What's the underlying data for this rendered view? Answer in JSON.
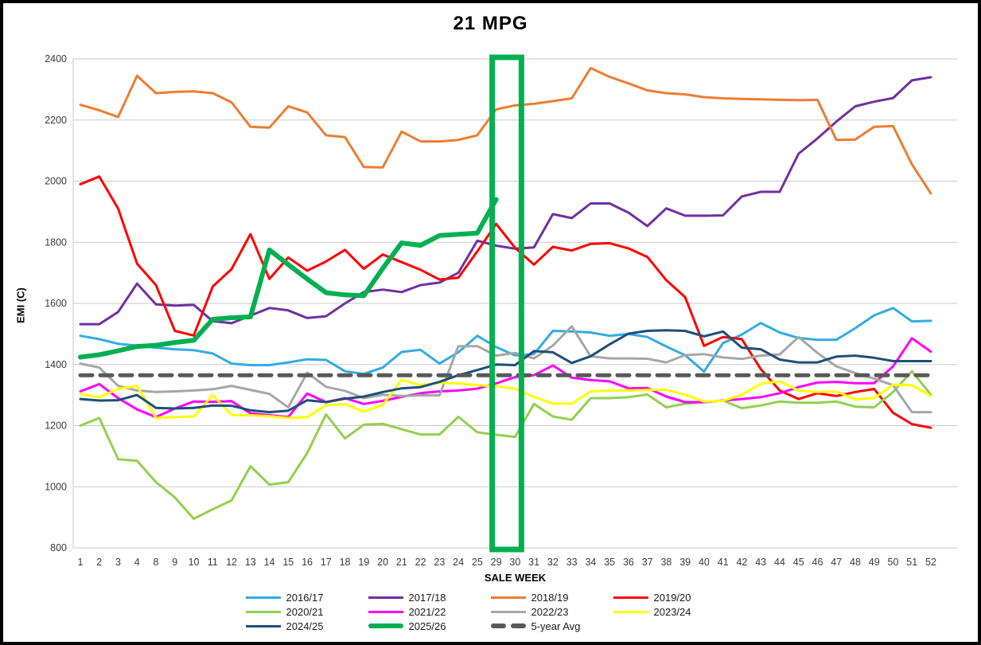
{
  "window": {
    "title": "21 MPG"
  },
  "chart_data": {
    "type": "line",
    "title": "21 MPG",
    "xlabel": "SALE WEEK",
    "ylabel": "EMI (C)",
    "ylim": [
      800,
      2400
    ],
    "y_ticks": [
      800,
      1000,
      1200,
      1400,
      1600,
      1800,
      2000,
      2200,
      2400
    ],
    "grid": true,
    "legend_position": "bottom",
    "gridline_color": "#c9c9c9",
    "axis_text_color": "#3a3a3a",
    "highlight_box": {
      "from_week": 29,
      "to_week": 30,
      "color": "#00B050"
    },
    "categories": [
      1,
      2,
      3,
      4,
      8,
      9,
      10,
      11,
      12,
      13,
      14,
      15,
      16,
      17,
      18,
      19,
      20,
      21,
      22,
      23,
      24,
      25,
      29,
      30,
      31,
      32,
      33,
      34,
      35,
      36,
      37,
      38,
      39,
      40,
      41,
      42,
      43,
      44,
      45,
      46,
      47,
      48,
      49,
      50,
      51,
      52
    ],
    "series": [
      {
        "name": "2016/17",
        "color": "#33ABE3",
        "width": 3,
        "values": [
          1494,
          1483,
          1468,
          1462,
          1455,
          1450,
          1447,
          1436,
          1403,
          1398,
          1398,
          1407,
          1417,
          1415,
          1378,
          1369,
          1390,
          1441,
          1448,
          1403,
          1440,
          1494,
          1457,
          1430,
          1434,
          1510,
          1508,
          1505,
          1494,
          1500,
          1490,
          1459,
          1430,
          1377,
          1470,
          1498,
          1536,
          1505,
          1487,
          1481,
          1481,
          1519,
          1561,
          1585,
          1541,
          1543
        ]
      },
      {
        "name": "2017/18",
        "color": "#7030A0",
        "width": 3,
        "values": [
          1532,
          1532,
          1572,
          1665,
          1597,
          1593,
          1595,
          1542,
          1535,
          1560,
          1585,
          1577,
          1552,
          1558,
          1600,
          1637,
          1645,
          1637,
          1660,
          1668,
          1700,
          1805,
          1789,
          1779,
          1783,
          1892,
          1879,
          1927,
          1927,
          1897,
          1853,
          1911,
          1887,
          1887,
          1888,
          1950,
          1965,
          1965,
          2090,
          2140,
          2195,
          2245,
          2260,
          2272,
          2330,
          2340
        ]
      },
      {
        "name": "2018/19",
        "color": "#ED7D31",
        "width": 3,
        "values": [
          2250,
          2232,
          2210,
          2345,
          2288,
          2292,
          2294,
          2288,
          2258,
          2178,
          2175,
          2245,
          2225,
          2150,
          2144,
          2046,
          2045,
          2162,
          2130,
          2130,
          2135,
          2150,
          2235,
          2248,
          2253,
          2262,
          2271,
          2370,
          2341,
          2320,
          2297,
          2288,
          2284,
          2275,
          2271,
          2269,
          2268,
          2266,
          2265,
          2266,
          2135,
          2136,
          2178,
          2180,
          2055,
          1960
        ]
      },
      {
        "name": "2019/20",
        "color": "#FF0000",
        "width": 3,
        "values": [
          1990,
          2015,
          1910,
          1730,
          1660,
          1510,
          1495,
          1655,
          1712,
          1827,
          1680,
          1750,
          1707,
          1737,
          1775,
          1713,
          1760,
          1735,
          1710,
          1678,
          1684,
          1770,
          1860,
          1782,
          1727,
          1785,
          1773,
          1795,
          1797,
          1780,
          1752,
          1676,
          1620,
          1461,
          1490,
          1483,
          1385,
          1315,
          1287,
          1306,
          1297,
          1310,
          1320,
          1242,
          1205,
          1193
        ]
      },
      {
        "name": "2020/21",
        "color": "#92D050",
        "width": 3,
        "values": [
          1200,
          1225,
          1090,
          1085,
          1015,
          965,
          895,
          926,
          955,
          1067,
          1007,
          1015,
          1110,
          1237,
          1158,
          1203,
          1206,
          1188,
          1171,
          1171,
          1229,
          1178,
          1170,
          1163,
          1271,
          1230,
          1219,
          1290,
          1290,
          1293,
          1302,
          1260,
          1272,
          1276,
          1282,
          1257,
          1266,
          1279,
          1275,
          1275,
          1279,
          1262,
          1260,
          1310,
          1378,
          1301
        ]
      },
      {
        "name": "2021/22",
        "color": "#FF00FF",
        "width": 3,
        "values": [
          1312,
          1336,
          1290,
          1253,
          1228,
          1256,
          1279,
          1278,
          1280,
          1240,
          1234,
          1228,
          1305,
          1277,
          1290,
          1271,
          1281,
          1294,
          1306,
          1312,
          1315,
          1321,
          1338,
          1359,
          1365,
          1397,
          1357,
          1349,
          1345,
          1322,
          1323,
          1295,
          1277,
          1277,
          1282,
          1287,
          1293,
          1306,
          1326,
          1341,
          1343,
          1339,
          1339,
          1394,
          1486,
          1442
        ]
      },
      {
        "name": "2022/23",
        "color": "#A6A6A6",
        "width": 3,
        "values": [
          1403,
          1390,
          1330,
          1315,
          1310,
          1312,
          1315,
          1319,
          1330,
          1317,
          1304,
          1260,
          1373,
          1327,
          1314,
          1290,
          1301,
          1297,
          1299,
          1299,
          1460,
          1460,
          1429,
          1438,
          1420,
          1462,
          1525,
          1427,
          1420,
          1420,
          1419,
          1407,
          1431,
          1434,
          1423,
          1418,
          1429,
          1433,
          1490,
          1438,
          1394,
          1372,
          1354,
          1332,
          1244,
          1244
        ]
      },
      {
        "name": "2023/24",
        "color": "#FFFF00",
        "width": 3,
        "values": [
          1303,
          1293,
          1320,
          1330,
          1225,
          1228,
          1230,
          1300,
          1235,
          1234,
          1231,
          1225,
          1228,
          1267,
          1270,
          1246,
          1268,
          1350,
          1332,
          1340,
          1338,
          1332,
          1329,
          1321,
          1294,
          1272,
          1272,
          1312,
          1315,
          1315,
          1317,
          1317,
          1301,
          1279,
          1281,
          1301,
          1337,
          1345,
          1315,
          1310,
          1312,
          1286,
          1290,
          1334,
          1332,
          1297
        ]
      },
      {
        "name": "2024/25",
        "color": "#1F4E79",
        "width": 3,
        "values": [
          1287,
          1282,
          1283,
          1300,
          1258,
          1256,
          1258,
          1266,
          1265,
          1250,
          1244,
          1249,
          1283,
          1277,
          1288,
          1295,
          1310,
          1322,
          1326,
          1343,
          1365,
          1382,
          1400,
          1398,
          1444,
          1440,
          1405,
          1427,
          1466,
          1501,
          1510,
          1512,
          1510,
          1492,
          1508,
          1455,
          1450,
          1416,
          1407,
          1407,
          1426,
          1429,
          1422,
          1411,
          1411,
          1411
        ]
      },
      {
        "name": "2025/26",
        "color": "#00B050",
        "width": 6,
        "values": [
          1424,
          1432,
          1445,
          1459,
          1463,
          1472,
          1479,
          1548,
          1553,
          1556,
          1775,
          1727,
          1680,
          1635,
          1628,
          1625,
          1715,
          1798,
          1790,
          1822,
          1826,
          1830,
          1940,
          null,
          null,
          null,
          null,
          null,
          null,
          null,
          null,
          null,
          null,
          null,
          null,
          null,
          null,
          null,
          null,
          null,
          null,
          null,
          null,
          null,
          null,
          null
        ]
      },
      {
        "name": "5-year Avg",
        "color": "#595959",
        "width": 5,
        "dash": [
          15,
          10
        ],
        "values": [
          1365,
          1365,
          1365,
          1365,
          1365,
          1365,
          1365,
          1365,
          1365,
          1365,
          1365,
          1365,
          1365,
          1365,
          1365,
          1365,
          1365,
          1365,
          1365,
          1365,
          1365,
          1365,
          1365,
          1365,
          1365,
          1365,
          1365,
          1365,
          1365,
          1365,
          1365,
          1365,
          1365,
          1365,
          1365,
          1365,
          1365,
          1365,
          1365,
          1365,
          1365,
          1365,
          1365,
          1365,
          1365,
          1365
        ]
      }
    ],
    "legend_rows": [
      [
        0,
        1,
        2,
        3
      ],
      [
        4,
        5,
        6,
        7
      ],
      [
        8,
        9,
        10
      ]
    ]
  }
}
